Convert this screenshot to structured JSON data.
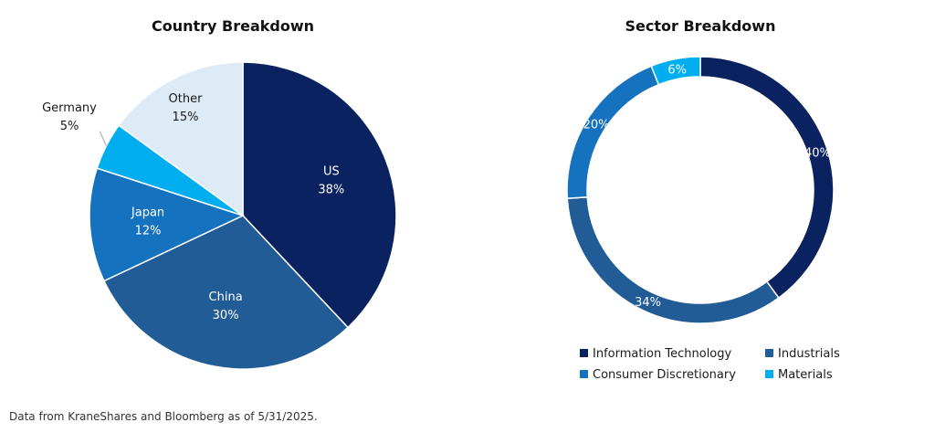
{
  "chart_data": [
    {
      "type": "pie",
      "title": "Country Breakdown",
      "categories": [
        "US",
        "China",
        "Japan",
        "Germany",
        "Other"
      ],
      "values": [
        38,
        30,
        12,
        5,
        15
      ],
      "value_labels": [
        "38%",
        "30%",
        "12%",
        "5%",
        "15%"
      ],
      "colors": [
        "#0b2260",
        "#215c97",
        "#1572bf",
        "#00aeef",
        "#dcebf6"
      ],
      "unit": "%"
    },
    {
      "type": "pie",
      "subtype": "donut",
      "title": "Sector Breakdown",
      "categories": [
        "Information Technology",
        "Industrials",
        "Consumer Discretionary",
        "Materials"
      ],
      "values": [
        40,
        34,
        20,
        6
      ],
      "value_labels": [
        "40%",
        "34%",
        "20%",
        "6%"
      ],
      "colors": [
        "#0b2260",
        "#215c97",
        "#1572bf",
        "#00aeef"
      ],
      "legend": "bottom",
      "unit": "%"
    }
  ],
  "footnote": "Data from KraneShares and Bloomberg as of 5/31/2025."
}
